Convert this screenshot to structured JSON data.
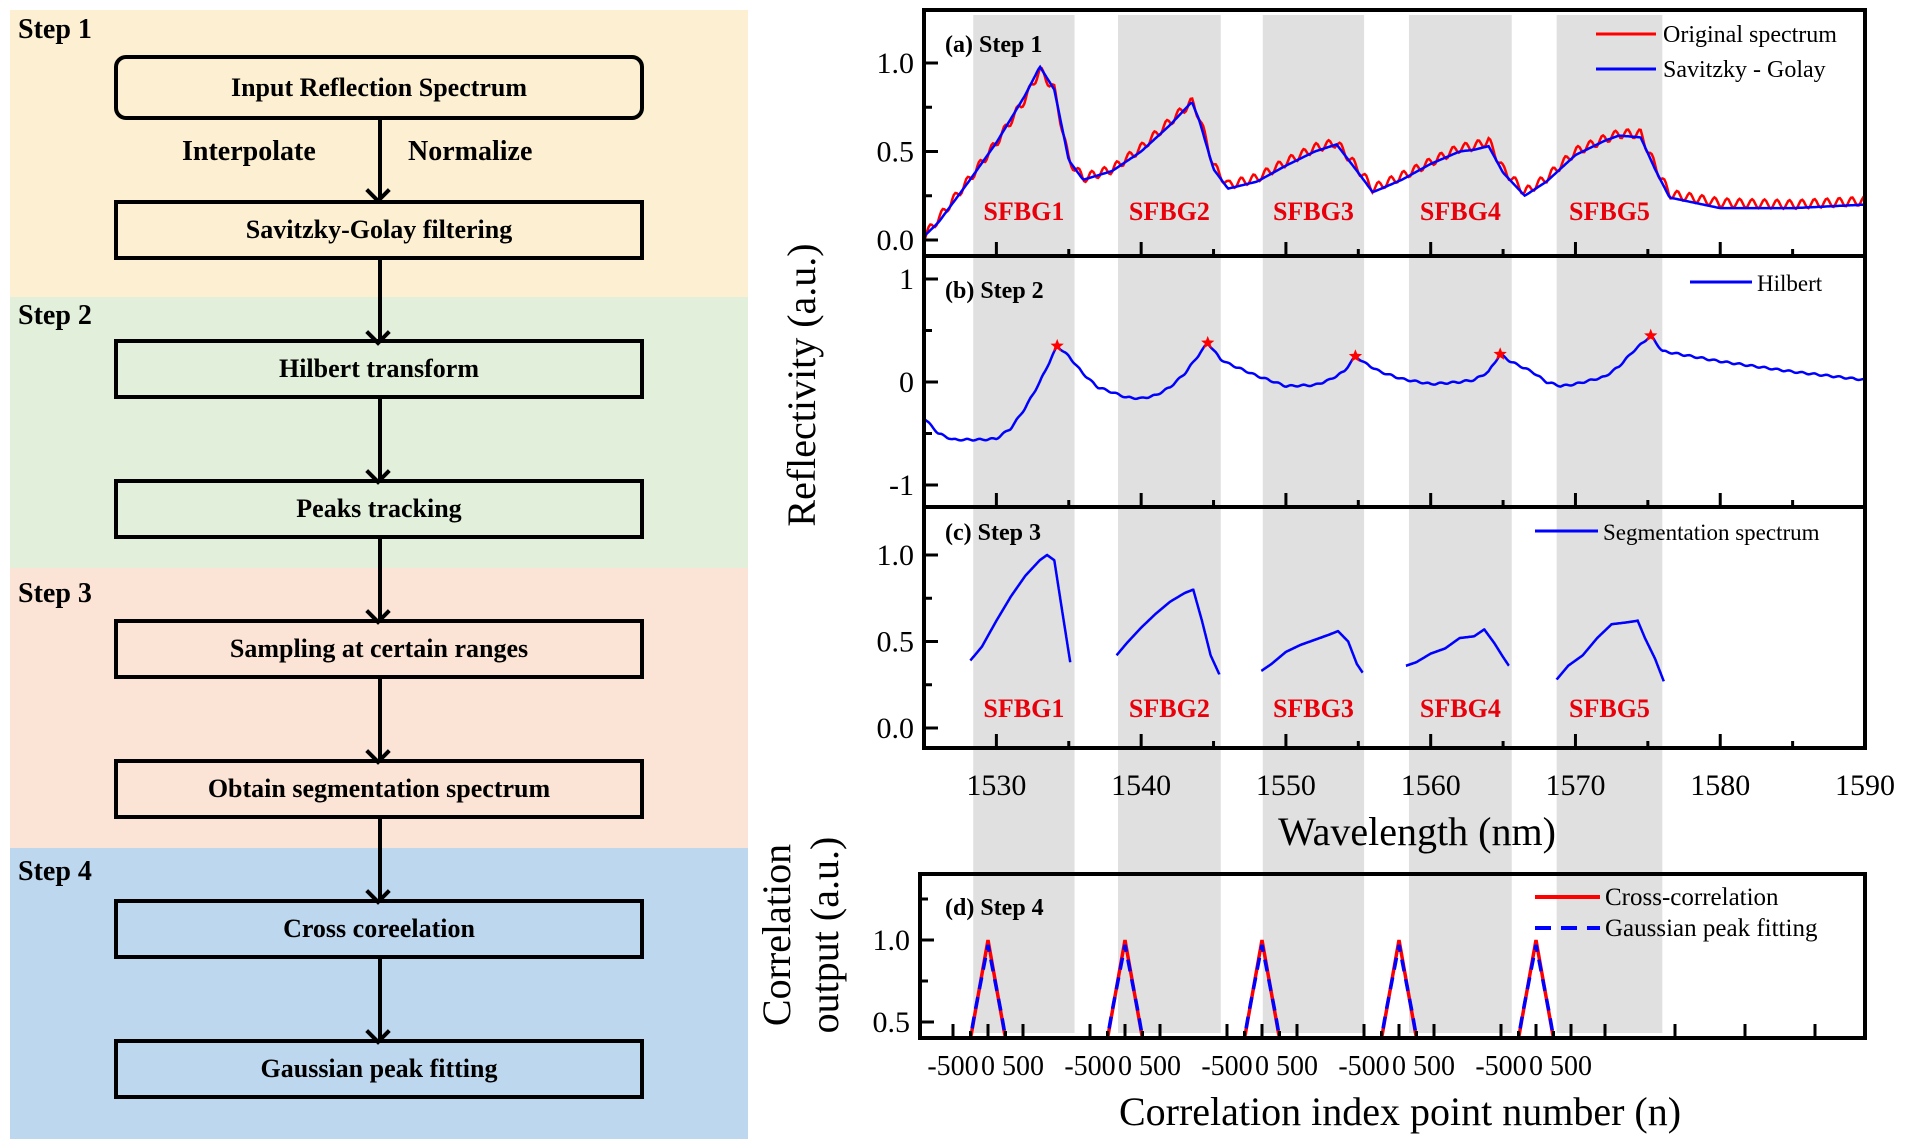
{
  "flowchart": {
    "steps": [
      {
        "label": "Step 1",
        "color": "#fdf0d2"
      },
      {
        "label": "Step 2",
        "color": "#e2efda"
      },
      {
        "label": "Step 3",
        "color": "#fbe4d5"
      },
      {
        "label": "Step 4",
        "color": "#bdd7ee"
      }
    ],
    "boxes": [
      "Input Reflection Spectrum",
      "Savitzky-Golay filtering",
      "Hilbert transform",
      "Peaks tracking",
      "Sampling at certain ranges",
      "Obtain segmentation spectrum",
      "Cross coreelation",
      "Gaussian peak fitting"
    ],
    "edge_labels": {
      "left": "Interpolate",
      "right": "Normalize"
    }
  },
  "chart_data": [
    {
      "id": "a",
      "type": "line",
      "title": "(a) Step 1",
      "xlabel": "Wavelength (nm)",
      "ylabel": "Reflectivity (a.u.)",
      "xlim": [
        1525,
        1590
      ],
      "ylim": [
        -0.05,
        1.1
      ],
      "yticks": [
        "0.0",
        "0.5",
        "1.0"
      ],
      "ytick_values": [
        0.0,
        0.5,
        1.0
      ],
      "legend": "top-right",
      "highlight_bands_nm": [
        [
          1528.4,
          1535.4
        ],
        [
          1538.4,
          1545.5
        ],
        [
          1548.4,
          1555.4
        ],
        [
          1558.5,
          1565.6
        ],
        [
          1568.7,
          1576.0
        ]
      ],
      "band_labels": [
        "SFBG1",
        "SFBG2",
        "SFBG3",
        "SFBG4",
        "SFBG5"
      ],
      "band_label_color": "#e8000b",
      "series": [
        {
          "name": "Original spectrum",
          "color": "#ff0000",
          "style": "solid",
          "ripple": true,
          "x": [
            1525,
            1526,
            1528,
            1530,
            1532,
            1533,
            1534,
            1535,
            1536,
            1538,
            1540,
            1542,
            1543.5,
            1544,
            1545,
            1546,
            1548,
            1550,
            1552,
            1553.5,
            1555,
            1556,
            1558,
            1560,
            1562,
            1563,
            1564,
            1565,
            1566.5,
            1568,
            1570,
            1572,
            1573,
            1574.5,
            1575.5,
            1576.5,
            1580,
            1585,
            1590
          ],
          "y": [
            0.02,
            0.12,
            0.33,
            0.55,
            0.8,
            0.96,
            0.85,
            0.45,
            0.35,
            0.4,
            0.52,
            0.67,
            0.78,
            0.7,
            0.42,
            0.31,
            0.35,
            0.44,
            0.52,
            0.55,
            0.4,
            0.29,
            0.36,
            0.44,
            0.52,
            0.53,
            0.56,
            0.4,
            0.27,
            0.35,
            0.5,
            0.57,
            0.6,
            0.6,
            0.42,
            0.26,
            0.21,
            0.2,
            0.22
          ]
        },
        {
          "name": "Savitzky - Golay",
          "color": "#0000ff",
          "style": "solid",
          "x": [
            1525,
            1526,
            1528,
            1530,
            1532,
            1533,
            1534,
            1535,
            1536,
            1538,
            1540,
            1542,
            1543.5,
            1544,
            1545,
            1546,
            1548,
            1550,
            1552,
            1553.5,
            1555,
            1556,
            1558,
            1560,
            1562,
            1563,
            1564,
            1565,
            1566.5,
            1568,
            1570,
            1572,
            1573,
            1574.5,
            1575.5,
            1576.5,
            1580,
            1585,
            1590
          ],
          "y": [
            0.02,
            0.1,
            0.32,
            0.55,
            0.82,
            0.98,
            0.85,
            0.45,
            0.34,
            0.39,
            0.5,
            0.65,
            0.78,
            0.68,
            0.4,
            0.29,
            0.33,
            0.42,
            0.5,
            0.54,
            0.38,
            0.27,
            0.34,
            0.43,
            0.5,
            0.51,
            0.53,
            0.38,
            0.25,
            0.33,
            0.48,
            0.56,
            0.59,
            0.58,
            0.4,
            0.24,
            0.18,
            0.18,
            0.2
          ]
        }
      ]
    },
    {
      "id": "b",
      "type": "line",
      "title": "(b) Step 2",
      "xlim": [
        1525,
        1590
      ],
      "ylim": [
        -1.2,
        1.0
      ],
      "yticks": [
        "-1",
        "0",
        "1"
      ],
      "ytick_values": [
        -1,
        0,
        1
      ],
      "legend": "top-right",
      "series": [
        {
          "name": "Hilbert",
          "color": "#0000ff",
          "style": "solid",
          "x": [
            1525,
            1526,
            1527,
            1529,
            1530,
            1531,
            1532,
            1533,
            1534.2,
            1535,
            1536,
            1537,
            1539,
            1540,
            1541,
            1542,
            1543,
            1544.6,
            1545.5,
            1546,
            1548,
            1550,
            1552,
            1553,
            1554,
            1554.8,
            1555.5,
            1556.5,
            1558,
            1560,
            1562,
            1563,
            1564,
            1564.8,
            1565.5,
            1567,
            1568,
            1569,
            1570,
            1572,
            1573,
            1574,
            1575.2,
            1576,
            1578,
            1580,
            1585,
            1590
          ],
          "y": [
            -0.35,
            -0.5,
            -0.56,
            -0.56,
            -0.55,
            -0.45,
            -0.25,
            0.0,
            0.35,
            0.25,
            0.08,
            -0.05,
            -0.15,
            -0.16,
            -0.13,
            -0.05,
            0.08,
            0.38,
            0.22,
            0.18,
            0.06,
            -0.04,
            -0.03,
            0.02,
            0.1,
            0.25,
            0.18,
            0.1,
            0.03,
            -0.02,
            0.0,
            0.02,
            0.1,
            0.27,
            0.2,
            0.1,
            0.0,
            -0.04,
            -0.02,
            0.05,
            0.15,
            0.3,
            0.45,
            0.3,
            0.25,
            0.2,
            0.1,
            0.02
          ]
        }
      ],
      "peaks": {
        "marker": "star",
        "color": "#ff0000",
        "x": [
          1534.2,
          1544.6,
          1554.8,
          1564.8,
          1575.2
        ],
        "y": [
          0.35,
          0.38,
          0.25,
          0.27,
          0.45
        ]
      }
    },
    {
      "id": "c",
      "type": "line",
      "title": "(c) Step 3",
      "xlim": [
        1525,
        1590
      ],
      "ylim": [
        -0.05,
        1.25
      ],
      "yticks": [
        "0.0",
        "0.5",
        "1.0"
      ],
      "ytick_values": [
        0.0,
        0.5,
        1.0
      ],
      "xticks": [
        "1530",
        "1540",
        "1550",
        "1560",
        "1570",
        "1580",
        "1590"
      ],
      "xtick_values": [
        1530,
        1540,
        1550,
        1560,
        1570,
        1580,
        1590
      ],
      "legend": "top-right",
      "band_labels": [
        "SFBG1",
        "SFBG2",
        "SFBG3",
        "SFBG4",
        "SFBG5"
      ],
      "series": [
        {
          "name": "Segmentation spectrum",
          "color": "#0000ff",
          "style": "solid",
          "segments": [
            {
              "x": [
                1528.2,
                1529,
                1530,
                1531,
                1532,
                1533,
                1533.5,
                1534,
                1534.5,
                1535.1
              ],
              "y": [
                0.39,
                0.47,
                0.62,
                0.76,
                0.88,
                0.97,
                1.0,
                0.97,
                0.7,
                0.38
              ]
            },
            {
              "x": [
                1538.3,
                1539,
                1540,
                1541,
                1542,
                1543,
                1543.6,
                1544.2,
                1544.8,
                1545.4
              ],
              "y": [
                0.42,
                0.49,
                0.58,
                0.66,
                0.73,
                0.78,
                0.8,
                0.62,
                0.42,
                0.31
              ]
            },
            {
              "x": [
                1548.3,
                1549,
                1550,
                1551,
                1552,
                1553,
                1553.6,
                1554.3,
                1554.9,
                1555.3
              ],
              "y": [
                0.33,
                0.37,
                0.44,
                0.48,
                0.51,
                0.54,
                0.56,
                0.5,
                0.37,
                0.32
              ]
            },
            {
              "x": [
                1558.3,
                1559,
                1560,
                1561,
                1562,
                1563,
                1563.7,
                1564.4,
                1565.0,
                1565.4
              ],
              "y": [
                0.36,
                0.38,
                0.43,
                0.46,
                0.52,
                0.53,
                0.57,
                0.49,
                0.41,
                0.36
              ]
            },
            {
              "x": [
                1568.7,
                1569.5,
                1570.5,
                1571.5,
                1572.5,
                1573.5,
                1574.3,
                1574.8,
                1575.5,
                1576.1
              ],
              "y": [
                0.28,
                0.36,
                0.42,
                0.52,
                0.6,
                0.61,
                0.62,
                0.52,
                0.4,
                0.27
              ]
            }
          ]
        }
      ]
    },
    {
      "id": "d",
      "type": "line",
      "title": "(d) Step 4",
      "xlabel": "Correlation index point number (n)",
      "ylabel": "Correlation output (a.u.)",
      "ylim": [
        0.4,
        1.3
      ],
      "yticks": [
        "0.5",
        "1.0"
      ],
      "ytick_values": [
        0.5,
        1.0
      ],
      "xticks_repeated": [
        "-500",
        "0",
        "500"
      ],
      "groups": 5,
      "legend": "top-right",
      "series": [
        {
          "name": "Cross-correlation",
          "color": "#ff0000",
          "style": "solid",
          "x": [
            -500,
            -250,
            0,
            250,
            500
          ],
          "y": [
            0.1,
            0.55,
            1.0,
            0.55,
            0.1
          ]
        },
        {
          "name": "Gaussian peak fitting",
          "color": "#0000ff",
          "style": "dashed",
          "x": [
            -500,
            -250,
            0,
            250,
            500
          ],
          "y": [
            0.1,
            0.56,
            0.97,
            0.56,
            0.1
          ]
        }
      ]
    }
  ],
  "shared_x_label": "Wavelength (nm)",
  "shared_y_label": "Reflectivity (a.u.)"
}
